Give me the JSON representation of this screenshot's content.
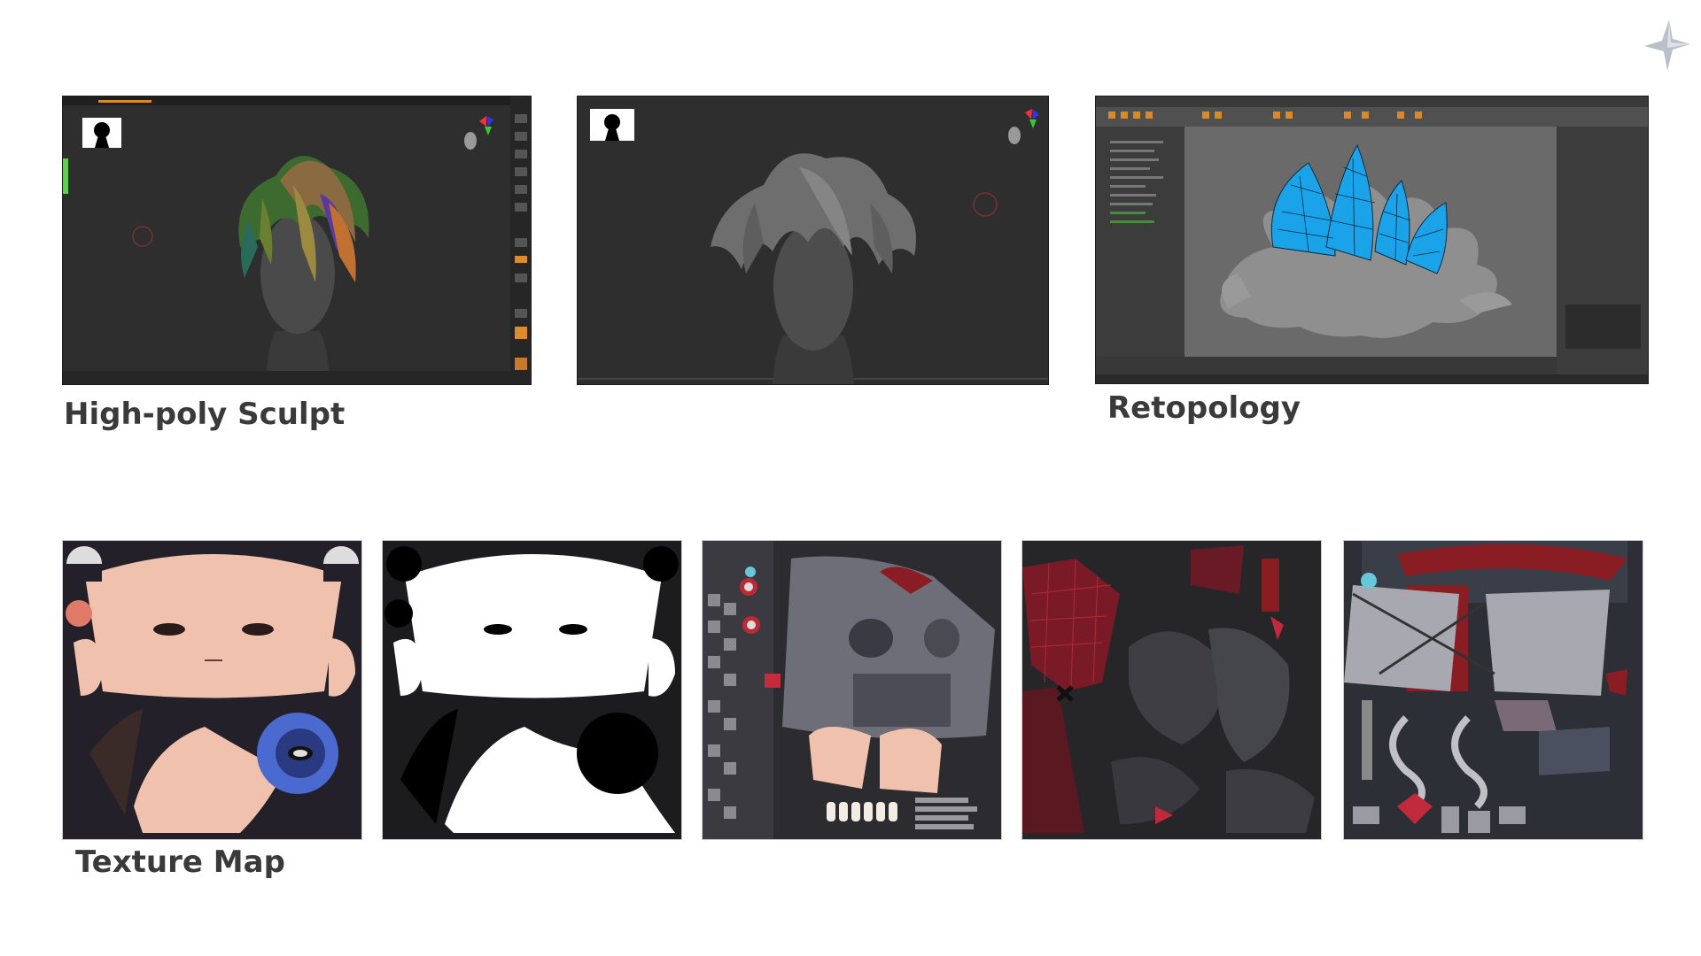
{
  "labels": {
    "sculpt": "High-poly Sculpt",
    "retopology": "Retopology",
    "texture": "Texture Map"
  },
  "icons": {
    "logo": "sparkle-star-icon",
    "silhouette": "head-silhouette-icon",
    "orientation": "axis-gizmo-icon"
  },
  "colors": {
    "title": "#3a3a3a",
    "viewport": "#2e2e2e",
    "retopo_mesh": "#1aa3e8",
    "skin": "#f0c2ae",
    "accent_red": "#8a1c24"
  }
}
